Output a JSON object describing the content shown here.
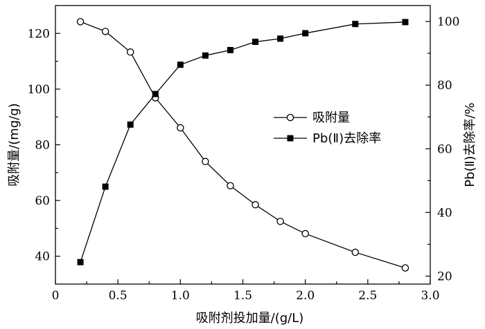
{
  "chart_data": {
    "type": "line",
    "title": "",
    "xlabel": "吸附剂投加量/(g/L)",
    "ylabel_left": "吸附量/(mg/g)",
    "ylabel_right": "Pb(Ⅱ)去除率/%",
    "xlim": [
      0,
      3.0
    ],
    "ylim_left": [
      30,
      130
    ],
    "ylim_right": [
      17.5,
      105
    ],
    "x_ticks": [
      "0",
      "0.5",
      "1.0",
      "1.5",
      "2.0",
      "2.5",
      "3.0"
    ],
    "x_tick_values": [
      0,
      0.5,
      1.0,
      1.5,
      2.0,
      2.5,
      3.0
    ],
    "y_left_ticks": [
      "40",
      "60",
      "80",
      "100",
      "120"
    ],
    "y_left_tick_values": [
      40,
      60,
      80,
      100,
      120
    ],
    "y_right_ticks": [
      "20",
      "40",
      "60",
      "80",
      "100"
    ],
    "y_right_tick_values": [
      20,
      40,
      60,
      80,
      100
    ],
    "grid": false,
    "legend_position": "center-right",
    "series": [
      {
        "name": "吸附量",
        "axis": "left",
        "marker": "open-circle",
        "x": [
          0.2,
          0.4,
          0.6,
          0.8,
          1.0,
          1.2,
          1.4,
          1.6,
          1.8,
          2.0,
          2.4,
          2.8
        ],
        "values": [
          124.2,
          120.7,
          113.3,
          96.9,
          86.1,
          74.0,
          65.3,
          58.5,
          52.5,
          48.1,
          41.4,
          35.8
        ]
      },
      {
        "name": "Pb(Ⅱ)去除率",
        "axis": "right",
        "marker": "filled-square",
        "x": [
          0.2,
          0.4,
          0.6,
          0.8,
          1.0,
          1.2,
          1.4,
          1.6,
          1.8,
          2.0,
          2.4,
          2.8
        ],
        "values": [
          24.4,
          48.1,
          67.6,
          77.2,
          86.4,
          89.3,
          91.0,
          93.6,
          94.6,
          96.3,
          99.2,
          99.8
        ]
      }
    ],
    "colors": {
      "line": "#000000",
      "open_marker_fill": "#ffffff",
      "filled_marker_fill": "#000000"
    }
  }
}
